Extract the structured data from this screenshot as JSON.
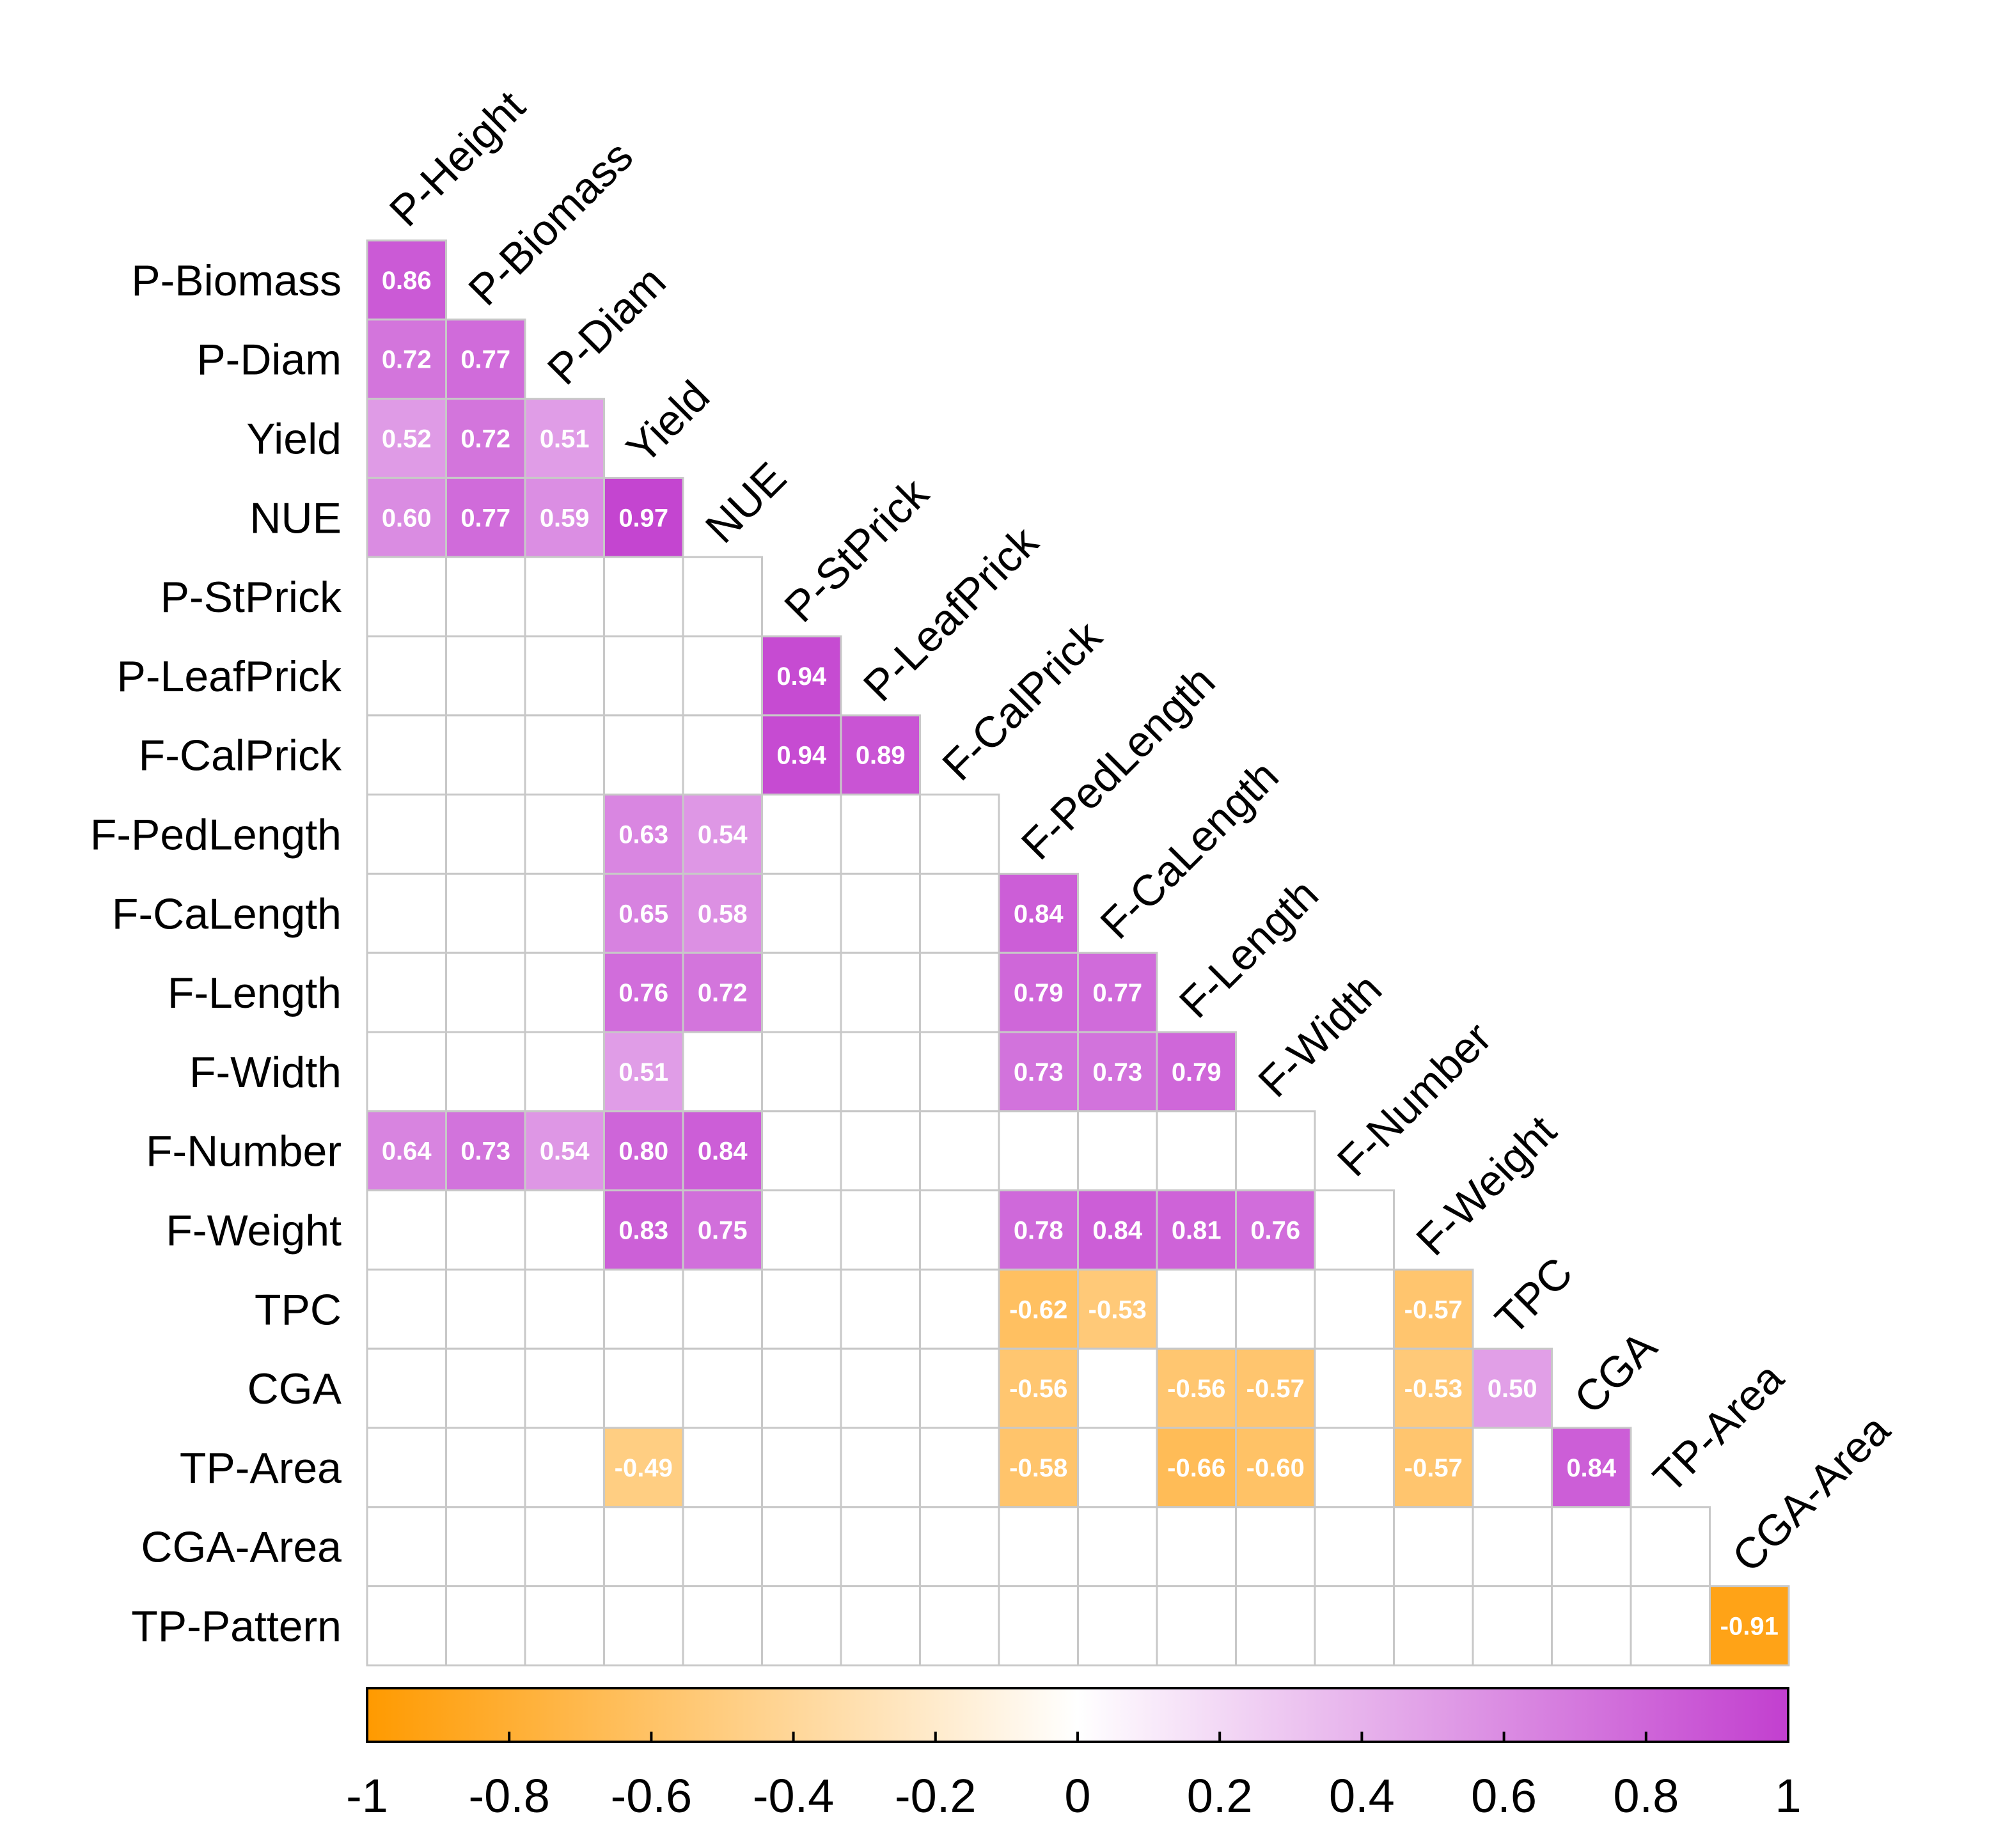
{
  "chart_data": {
    "type": "heatmap",
    "title": "",
    "row_labels": [
      "P-Biomass",
      "P-Diam",
      "Yield",
      "NUE",
      "P-StPrick",
      "P-LeafPrick",
      "F-CalPrick",
      "F-PedLength",
      "F-CaLength",
      "F-Length",
      "F-Width",
      "F-Number",
      "F-Weight",
      "TPC",
      "CGA",
      "TP-Area",
      "CGA-Area",
      "TP-Pattern"
    ],
    "col_labels": [
      "P-Height",
      "P-Biomass",
      "P-Diam",
      "Yield",
      "NUE",
      "P-StPrick",
      "P-LeafPrick",
      "F-CalPrick",
      "F-PedLength",
      "F-CaLength",
      "F-Length",
      "F-Width",
      "F-Number",
      "F-Weight",
      "TPC",
      "CGA",
      "TP-Area",
      "CGA-Area"
    ],
    "values": [
      [
        0.86,
        null,
        null,
        null,
        null,
        null,
        null,
        null,
        null,
        null,
        null,
        null,
        null,
        null,
        null,
        null,
        null,
        null
      ],
      [
        0.72,
        0.77,
        null,
        null,
        null,
        null,
        null,
        null,
        null,
        null,
        null,
        null,
        null,
        null,
        null,
        null,
        null,
        null
      ],
      [
        0.52,
        0.72,
        0.51,
        null,
        null,
        null,
        null,
        null,
        null,
        null,
        null,
        null,
        null,
        null,
        null,
        null,
        null,
        null
      ],
      [
        0.6,
        0.77,
        0.59,
        0.97,
        null,
        null,
        null,
        null,
        null,
        null,
        null,
        null,
        null,
        null,
        null,
        null,
        null,
        null
      ],
      [
        null,
        null,
        null,
        null,
        null,
        null,
        null,
        null,
        null,
        null,
        null,
        null,
        null,
        null,
        null,
        null,
        null,
        null
      ],
      [
        null,
        null,
        null,
        null,
        null,
        0.94,
        null,
        null,
        null,
        null,
        null,
        null,
        null,
        null,
        null,
        null,
        null,
        null
      ],
      [
        null,
        null,
        null,
        null,
        null,
        0.94,
        0.89,
        null,
        null,
        null,
        null,
        null,
        null,
        null,
        null,
        null,
        null,
        null
      ],
      [
        null,
        null,
        null,
        0.63,
        0.54,
        null,
        null,
        null,
        null,
        null,
        null,
        null,
        null,
        null,
        null,
        null,
        null,
        null
      ],
      [
        null,
        null,
        null,
        0.65,
        0.58,
        null,
        null,
        null,
        0.84,
        null,
        null,
        null,
        null,
        null,
        null,
        null,
        null,
        null
      ],
      [
        null,
        null,
        null,
        0.76,
        0.72,
        null,
        null,
        null,
        0.79,
        0.77,
        null,
        null,
        null,
        null,
        null,
        null,
        null,
        null
      ],
      [
        null,
        null,
        null,
        0.51,
        null,
        null,
        null,
        null,
        0.73,
        0.73,
        0.79,
        null,
        null,
        null,
        null,
        null,
        null,
        null
      ],
      [
        0.64,
        0.73,
        0.54,
        0.8,
        0.84,
        null,
        null,
        null,
        null,
        null,
        null,
        null,
        null,
        null,
        null,
        null,
        null,
        null
      ],
      [
        null,
        null,
        null,
        0.83,
        0.75,
        null,
        null,
        null,
        0.78,
        0.84,
        0.81,
        0.76,
        null,
        null,
        null,
        null,
        null,
        null
      ],
      [
        null,
        null,
        null,
        null,
        null,
        null,
        null,
        null,
        -0.62,
        -0.53,
        null,
        null,
        null,
        -0.57,
        null,
        null,
        null,
        null
      ],
      [
        null,
        null,
        null,
        null,
        null,
        null,
        null,
        null,
        -0.56,
        null,
        -0.56,
        -0.57,
        null,
        -0.53,
        0.5,
        null,
        null,
        null
      ],
      [
        null,
        null,
        null,
        -0.49,
        null,
        null,
        null,
        null,
        -0.58,
        null,
        -0.66,
        -0.6,
        null,
        -0.57,
        null,
        0.84,
        null,
        null
      ],
      [
        null,
        null,
        null,
        null,
        null,
        null,
        null,
        null,
        null,
        null,
        null,
        null,
        null,
        null,
        null,
        null,
        null,
        null
      ],
      [
        null,
        null,
        null,
        null,
        null,
        null,
        null,
        null,
        null,
        null,
        null,
        null,
        null,
        null,
        null,
        null,
        null,
        -0.91
      ]
    ],
    "colorbar": {
      "range": [
        -1,
        1
      ],
      "ticks": [
        -1,
        -0.8,
        -0.6,
        -0.4,
        -0.2,
        0,
        0.2,
        0.4,
        0.6,
        0.8,
        1
      ],
      "tick_labels": [
        "-1",
        "-0.8",
        "-0.6",
        "-0.4",
        "-0.2",
        "0",
        "0.2",
        "0.4",
        "0.6",
        "0.8",
        "1"
      ],
      "colors": {
        "negative": "#ff9a00",
        "neutral": "#ffffff",
        "positive": "#c23fcf"
      }
    }
  }
}
